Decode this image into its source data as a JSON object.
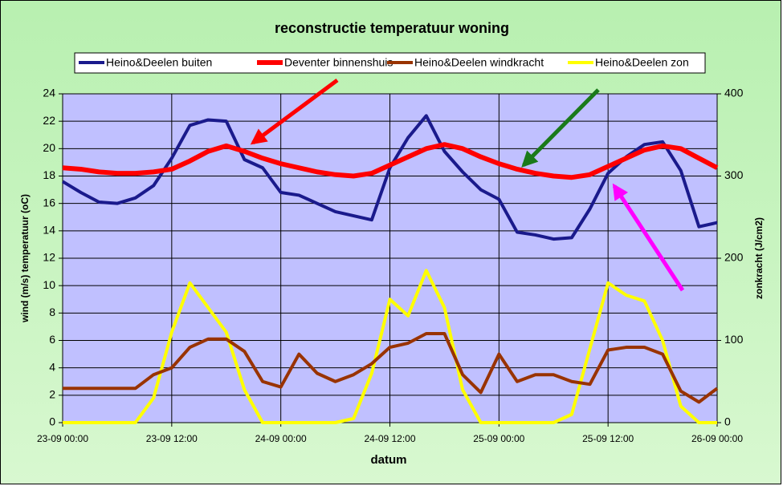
{
  "chart_data": {
    "type": "line",
    "title": "reconstructie temperatuur woning",
    "x_label": "datum",
    "y_label": "wind (m/s) temperatuur (oC)",
    "y2_label": "zonkracht (J/cm2)",
    "x": [
      0,
      2,
      4,
      6,
      8,
      10,
      12,
      14,
      16,
      18,
      20,
      22,
      24,
      26,
      28,
      30,
      32,
      34,
      36,
      38,
      40,
      42,
      44,
      46,
      48,
      50,
      52,
      54,
      56,
      58,
      60,
      62,
      64,
      66,
      68,
      70,
      72
    ],
    "xlim": [
      0,
      72
    ],
    "xticks": [
      {
        "value": 0,
        "label": "23-09 00:00"
      },
      {
        "value": 12,
        "label": "23-09 12:00"
      },
      {
        "value": 24,
        "label": "24-09 00:00"
      },
      {
        "value": 36,
        "label": "24-09 12:00"
      },
      {
        "value": 48,
        "label": "25-09 00:00"
      },
      {
        "value": 60,
        "label": "25-09 12:00"
      },
      {
        "value": 72,
        "label": "26-09 00:00"
      }
    ],
    "ylim": [
      0,
      24
    ],
    "yticks": [
      0,
      2,
      4,
      6,
      8,
      10,
      12,
      14,
      16,
      18,
      20,
      22,
      24
    ],
    "y2lim": [
      0,
      400
    ],
    "y2ticks": [
      0,
      100,
      200,
      300,
      400
    ],
    "grid": true,
    "legend": "top",
    "series": [
      {
        "name": "Heino&Deelen buiten",
        "color": "#1a1a8c",
        "values": [
          17.6,
          16.8,
          16.1,
          16.0,
          16.4,
          17.3,
          19.3,
          21.7,
          22.1,
          22.0,
          19.2,
          18.6,
          16.8,
          16.6,
          16.0,
          15.4,
          15.1,
          14.8,
          18.6,
          20.8,
          22.4,
          19.8,
          18.3,
          17.0,
          16.3,
          13.9,
          13.7,
          13.4,
          13.5,
          15.6,
          18.2,
          19.4,
          20.3,
          20.5,
          18.4,
          14.3,
          14.6
        ]
      },
      {
        "name": "Deventer binnenshuis",
        "color": "#ff0000",
        "values": [
          18.6,
          18.5,
          18.3,
          18.2,
          18.2,
          18.3,
          18.5,
          19.1,
          19.8,
          20.2,
          19.8,
          19.3,
          18.9,
          18.6,
          18.3,
          18.1,
          18.0,
          18.2,
          18.8,
          19.4,
          20.0,
          20.3,
          20.0,
          19.4,
          18.9,
          18.5,
          18.2,
          18.0,
          17.9,
          18.1,
          18.7,
          19.3,
          19.9,
          20.2,
          20.0,
          19.3,
          18.6
        ]
      },
      {
        "name": "Heino&Deelen windkracht",
        "color": "#993300",
        "values": [
          2.5,
          2.5,
          2.5,
          2.5,
          2.5,
          3.5,
          4.0,
          5.5,
          6.1,
          6.1,
          5.2,
          3.0,
          2.6,
          5.0,
          3.6,
          3.0,
          3.5,
          4.3,
          5.5,
          5.8,
          6.5,
          6.5,
          3.5,
          2.2,
          5.0,
          3.0,
          3.5,
          3.5,
          3.0,
          2.8,
          5.3,
          5.5,
          5.5,
          5.0,
          2.3,
          1.5,
          2.5
        ]
      },
      {
        "name": "Heino&Deelen zon",
        "color": "#ffff00",
        "axis": "y2",
        "values": [
          0,
          0,
          0,
          0,
          0,
          30,
          110,
          170,
          140,
          110,
          40,
          0,
          0,
          0,
          0,
          0,
          5,
          60,
          150,
          130,
          185,
          140,
          40,
          0,
          0,
          0,
          0,
          0,
          10,
          90,
          170,
          155,
          148,
          100,
          20,
          0,
          0
        ]
      }
    ]
  }
}
